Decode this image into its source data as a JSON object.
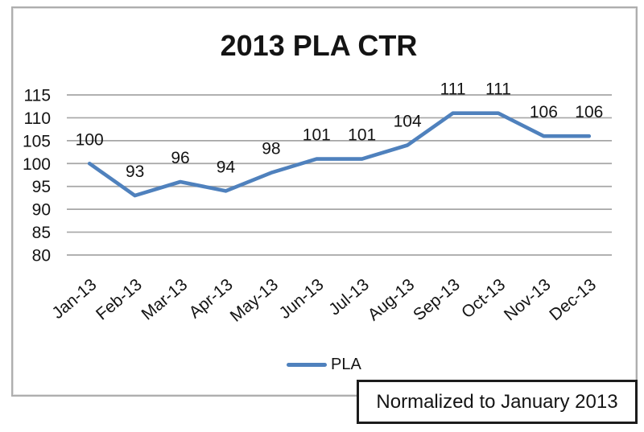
{
  "chart_data": {
    "type": "line",
    "title": "2013 PLA CTR",
    "categories": [
      "Jan-13",
      "Feb-13",
      "Mar-13",
      "Apr-13",
      "May-13",
      "Jun-13",
      "Jul-13",
      "Aug-13",
      "Sep-13",
      "Oct-13",
      "Nov-13",
      "Dec-13"
    ],
    "series": [
      {
        "name": "PLA",
        "color": "#4F81BD",
        "values": [
          100,
          93,
          96,
          94,
          98,
          101,
          101,
          104,
          111,
          111,
          106,
          106
        ]
      }
    ],
    "ylim": [
      80,
      115
    ],
    "yticks": [
      115,
      110,
      105,
      100,
      95,
      90,
      85,
      80
    ],
    "grid": true,
    "gridline_color": "#A6A6A6",
    "legend_position": "bottom",
    "data_labels": true,
    "x_label_rotation_deg": -40,
    "annotation": "Normalized to January 2013"
  },
  "legend": {
    "label": "PLA",
    "swatch_color": "#4F81BD"
  },
  "note_box": {
    "text": "Normalized to January 2013"
  },
  "frame": {
    "border_color": "#AEAEAE"
  }
}
